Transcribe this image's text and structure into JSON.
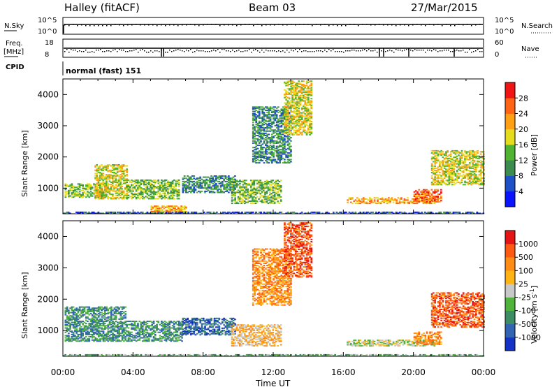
{
  "header": {
    "title": "Halley (fitACF)",
    "beam": "Beam 03",
    "date": "27/Mar/2015"
  },
  "status_panels": {
    "nsky_label": "N.Sky",
    "nsky_ticks": [
      "10^5",
      "10^0"
    ],
    "nsearch_label": "N.Search",
    "nsearch_ticks": [
      "10^5",
      "10^0"
    ],
    "freq_label": "Freq.",
    "freq_unit": "[MHz]",
    "freq_ticks": [
      "18",
      "8"
    ],
    "nave_label": "Nave",
    "nave_ticks": [
      "60",
      "0"
    ],
    "cpid_label": "CPID",
    "cpid_value": "normal (fast) 151"
  },
  "chart_data": [
    {
      "type": "heatmap",
      "name": "power",
      "ylabel": "Slant Range [km]",
      "xlabel": "Time UT",
      "x_ticks": [
        "00:00",
        "04:00",
        "08:00",
        "12:00",
        "16:00",
        "20:00",
        "00:00"
      ],
      "x_range_hours": [
        0,
        24
      ],
      "y_range_km": [
        180,
        4500
      ],
      "y_ticks": [
        1000,
        2000,
        3000,
        4000
      ],
      "colorbar": {
        "label": "Power [dB]",
        "ticks": [
          "4",
          "8",
          "12",
          "16",
          "20",
          "24",
          "28"
        ],
        "colors": [
          "#0a14ff",
          "#1e50c8",
          "#3c8c50",
          "#50b432",
          "#e6dc1e",
          "#ffa014",
          "#ff6414",
          "#f01414"
        ]
      },
      "features": [
        {
          "t0": 0.1,
          "t1": 2.4,
          "r0": 700,
          "r1": 1150,
          "level": 3
        },
        {
          "t0": 1.8,
          "t1": 3.6,
          "r0": 650,
          "r1": 1750,
          "level": 4
        },
        {
          "t0": 3.6,
          "t1": 6.6,
          "r0": 650,
          "r1": 1250,
          "level": 3
        },
        {
          "t0": 5.0,
          "t1": 7.0,
          "r0": 200,
          "r1": 420,
          "level": 5
        },
        {
          "t0": 6.8,
          "t1": 9.8,
          "r0": 850,
          "r1": 1400,
          "level": 2
        },
        {
          "t0": 9.6,
          "t1": 12.4,
          "r0": 500,
          "r1": 1250,
          "level": 3
        },
        {
          "t0": 10.8,
          "t1": 13.0,
          "r0": 1800,
          "r1": 3600,
          "level": 2
        },
        {
          "t0": 12.6,
          "t1": 14.2,
          "r0": 2700,
          "r1": 4450,
          "level": 4
        },
        {
          "t0": 16.2,
          "t1": 21.2,
          "r0": 500,
          "r1": 700,
          "level": 5
        },
        {
          "t0": 20.0,
          "t1": 21.6,
          "r0": 550,
          "r1": 950,
          "level": 6
        },
        {
          "t0": 21.0,
          "t1": 24.0,
          "r0": 1100,
          "r1": 2200,
          "level": 4
        },
        {
          "t0": 0.0,
          "t1": 24.0,
          "r0": 180,
          "r1": 240,
          "level": 1
        }
      ]
    },
    {
      "type": "heatmap",
      "name": "velocity",
      "ylabel": "Slant Range [km]",
      "xlabel": "Time UT",
      "x_ticks": [
        "00:00",
        "04:00",
        "08:00",
        "12:00",
        "16:00",
        "20:00",
        "00:00"
      ],
      "x_range_hours": [
        0,
        24
      ],
      "y_range_km": [
        180,
        4500
      ],
      "y_ticks": [
        1000,
        2000,
        3000,
        4000
      ],
      "colorbar": {
        "label": "Velocity [m s^-1]",
        "ticks": [
          "1000",
          "500",
          "100",
          "25",
          "-25",
          "-100",
          "-500",
          "-1000"
        ],
        "colors": [
          "#1432c8",
          "#3264b4",
          "#3c8c64",
          "#50b43c",
          "#c8c8c8",
          "#ffb414",
          "#ff8c14",
          "#ff5a14",
          "#e61414"
        ]
      },
      "features": [
        {
          "t0": 0.1,
          "t1": 3.6,
          "r0": 650,
          "r1": 1750,
          "level": 2
        },
        {
          "t0": 3.6,
          "t1": 6.8,
          "r0": 650,
          "r1": 1300,
          "level": 2
        },
        {
          "t0": 6.8,
          "t1": 9.8,
          "r0": 850,
          "r1": 1400,
          "level": 1
        },
        {
          "t0": 9.6,
          "t1": 12.4,
          "r0": 500,
          "r1": 1200,
          "level": 5
        },
        {
          "t0": 10.8,
          "t1": 13.0,
          "r0": 1800,
          "r1": 3600,
          "level": 6
        },
        {
          "t0": 12.6,
          "t1": 14.2,
          "r0": 2700,
          "r1": 4450,
          "level": 7
        },
        {
          "t0": 16.2,
          "t1": 21.2,
          "r0": 500,
          "r1": 700,
          "level": 4
        },
        {
          "t0": 20.0,
          "t1": 21.6,
          "r0": 550,
          "r1": 950,
          "level": 6
        },
        {
          "t0": 21.0,
          "t1": 24.0,
          "r0": 1100,
          "r1": 2200,
          "level": 7
        },
        {
          "t0": 0.0,
          "t1": 24.0,
          "r0": 180,
          "r1": 240,
          "level": 3
        }
      ]
    }
  ]
}
